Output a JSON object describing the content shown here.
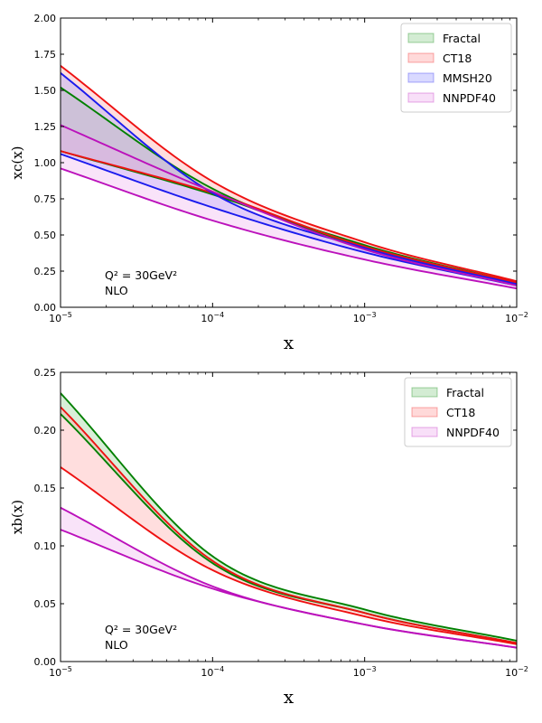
{
  "chart_data": [
    {
      "type": "area",
      "xscale": "log",
      "xlim": [
        1e-05,
        0.01
      ],
      "ylim": [
        0,
        2.0
      ],
      "xlabel": "x",
      "ylabel": "xc(x)",
      "x_ticks": [
        {
          "value": 1e-05,
          "base": "10",
          "exp": "−5"
        },
        {
          "value": 0.0001,
          "base": "10",
          "exp": "−4"
        },
        {
          "value": 0.001,
          "base": "10",
          "exp": "−3"
        },
        {
          "value": 0.01,
          "base": "10",
          "exp": "−2"
        }
      ],
      "y_ticks": [
        {
          "value": 0.0,
          "label": "0.00"
        },
        {
          "value": 0.25,
          "label": "0.25"
        },
        {
          "value": 0.5,
          "label": "0.50"
        },
        {
          "value": 0.75,
          "label": "0.75"
        },
        {
          "value": 1.0,
          "label": "1.00"
        },
        {
          "value": 1.25,
          "label": "1.25"
        },
        {
          "value": 1.5,
          "label": "1.50"
        },
        {
          "value": 1.75,
          "label": "1.75"
        },
        {
          "value": 2.0,
          "label": "2.00"
        }
      ],
      "annotation": {
        "q2_label": "Q² = 30GeV²",
        "order_label": "NLO"
      },
      "x": [
        1e-05,
        0.0001,
        0.001,
        0.01
      ],
      "series": [
        {
          "name": "Fractal",
          "line_color": "#008000",
          "fill_color": "#90cf90",
          "upper": [
            1.52,
            0.82,
            0.43,
            0.17
          ],
          "lower": [
            1.08,
            0.78,
            0.41,
            0.16
          ]
        },
        {
          "name": "CT18",
          "line_color": "#ee1111",
          "fill_color": "#ffa0a0",
          "upper": [
            1.67,
            0.87,
            0.45,
            0.18
          ],
          "lower": [
            1.08,
            0.79,
            0.42,
            0.17
          ]
        },
        {
          "name": "MMSH20",
          "line_color": "#1a1aee",
          "fill_color": "#a0a0ff",
          "upper": [
            1.62,
            0.79,
            0.41,
            0.16
          ],
          "lower": [
            1.06,
            0.69,
            0.38,
            0.15
          ]
        },
        {
          "name": "NNPDF40",
          "line_color": "#bb11bb",
          "fill_color": "#eeb0ee",
          "upper": [
            1.26,
            0.8,
            0.4,
            0.15
          ],
          "lower": [
            0.96,
            0.6,
            0.33,
            0.13
          ]
        }
      ]
    },
    {
      "type": "area",
      "xscale": "log",
      "xlim": [
        1e-05,
        0.01
      ],
      "ylim": [
        0,
        0.25
      ],
      "xlabel": "x",
      "ylabel": "xb(x)",
      "x_ticks": [
        {
          "value": 1e-05,
          "base": "10",
          "exp": "−5"
        },
        {
          "value": 0.0001,
          "base": "10",
          "exp": "−4"
        },
        {
          "value": 0.001,
          "base": "10",
          "exp": "−3"
        },
        {
          "value": 0.01,
          "base": "10",
          "exp": "−2"
        }
      ],
      "y_ticks": [
        {
          "value": 0.0,
          "label": "0.00"
        },
        {
          "value": 0.05,
          "label": "0.05"
        },
        {
          "value": 0.1,
          "label": "0.10"
        },
        {
          "value": 0.15,
          "label": "0.15"
        },
        {
          "value": 0.2,
          "label": "0.20"
        },
        {
          "value": 0.25,
          "label": "0.25"
        }
      ],
      "annotation": {
        "q2_label": "Q² = 30GeV²",
        "order_label": "NLO"
      },
      "x": [
        1e-05,
        0.0001,
        0.001,
        0.01
      ],
      "series": [
        {
          "name": "Fractal",
          "line_color": "#008000",
          "fill_color": "#90cf90",
          "upper": [
            0.232,
            0.091,
            0.045,
            0.018
          ],
          "lower": [
            0.214,
            0.085,
            0.042,
            0.016
          ]
        },
        {
          "name": "CT18",
          "line_color": "#ee1111",
          "fill_color": "#ffa0a0",
          "upper": [
            0.22,
            0.087,
            0.042,
            0.016
          ],
          "lower": [
            0.168,
            0.079,
            0.039,
            0.015
          ]
        },
        {
          "name": "NNPDF40",
          "line_color": "#bb11bb",
          "fill_color": "#eeb0ee",
          "upper": [
            0.133,
            0.065,
            0.032,
            0.012
          ],
          "lower": [
            0.114,
            0.063,
            0.032,
            0.012
          ]
        }
      ]
    }
  ]
}
